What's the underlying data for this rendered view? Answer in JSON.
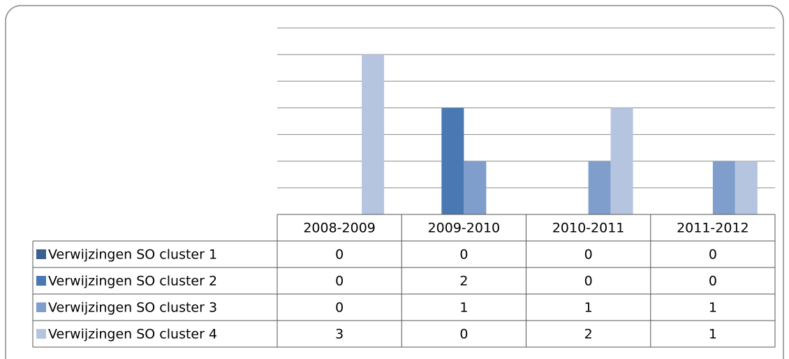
{
  "chart_data": {
    "type": "bar",
    "categories": [
      "2008-2009",
      "2009-2010",
      "2010-2011",
      "2011-2012"
    ],
    "series": [
      {
        "name": "Verwijzingen SO cluster 1",
        "color": "#3b5f8e",
        "values": [
          0,
          0,
          0,
          0
        ]
      },
      {
        "name": "Verwijzingen SO cluster 2",
        "color": "#4a78b2",
        "values": [
          0,
          2,
          0,
          0
        ]
      },
      {
        "name": "Verwijzingen SO cluster 3",
        "color": "#7f9ecb",
        "values": [
          0,
          1,
          1,
          1
        ]
      },
      {
        "name": "Verwijzingen SO cluster 4",
        "color": "#b6c5df",
        "values": [
          3,
          0,
          2,
          1
        ]
      }
    ],
    "ylim": [
      0,
      3.5
    ],
    "yticks": [
      0,
      0.5,
      1,
      1.5,
      2,
      2.5,
      3,
      3.5
    ],
    "grid": true
  }
}
